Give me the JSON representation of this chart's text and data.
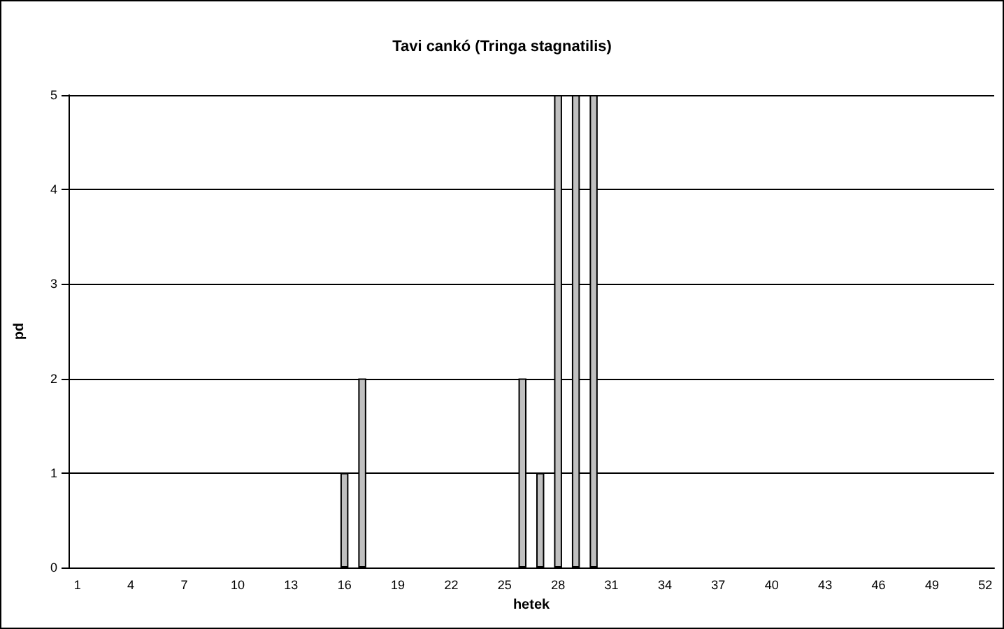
{
  "chart_data": {
    "type": "bar",
    "title": "Tavi cankó (Tringa stagnatilis)",
    "xlabel": "hetek",
    "ylabel": "pd",
    "categories": [
      "1",
      null,
      null,
      "4",
      null,
      null,
      "7",
      null,
      null,
      "10",
      null,
      null,
      "13",
      null,
      null,
      "16",
      null,
      null,
      "19",
      null,
      null,
      "22",
      null,
      null,
      "25",
      null,
      null,
      "28",
      null,
      null,
      "31",
      null,
      null,
      "34",
      null,
      null,
      "37",
      null,
      null,
      "40",
      null,
      null,
      "43",
      null,
      null,
      "46",
      null,
      null,
      "49",
      null,
      null,
      "52"
    ],
    "values": [
      0,
      0,
      0,
      0,
      0,
      0,
      0,
      0,
      0,
      0,
      0,
      0,
      0,
      0,
      0,
      1,
      2,
      0,
      0,
      0,
      0,
      0,
      0,
      0,
      0,
      2,
      1,
      5,
      5,
      5,
      0,
      0,
      0,
      0,
      0,
      0,
      0,
      0,
      0,
      0,
      0,
      0,
      0,
      0,
      0,
      0,
      0,
      0,
      0,
      0,
      0,
      0
    ],
    "color": "#c0c0c0",
    "ylim": [
      0,
      5
    ],
    "yticks": [
      0,
      1,
      2,
      3,
      4,
      5
    ],
    "grid": "y"
  }
}
